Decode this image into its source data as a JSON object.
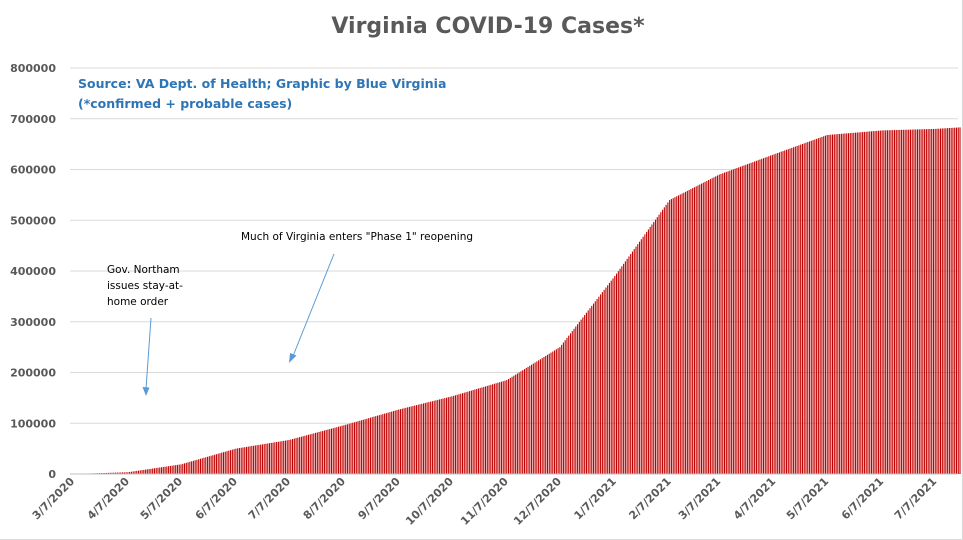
{
  "chart_data": {
    "type": "bar",
    "title": "Virginia COVID-19 Cases*",
    "source_lines": [
      "Source: VA Dept. of Health; Graphic by Blue Virginia",
      "(*confirmed + probable cases)"
    ],
    "xlabel": "",
    "ylabel": "",
    "ylim": [
      0,
      800000
    ],
    "y_ticks": [
      0,
      100000,
      200000,
      300000,
      400000,
      500000,
      600000,
      700000,
      800000
    ],
    "y_tick_labels": [
      "0",
      "100000",
      "200000",
      "300000",
      "400000",
      "500000",
      "600000",
      "700000",
      "800000"
    ],
    "x_tick_labels": [
      "3/7/2020",
      "4/7/2020",
      "5/7/2020",
      "6/7/2020",
      "7/7/2020",
      "8/7/2020",
      "9/7/2020",
      "10/7/2020",
      "11/7/2020",
      "12/7/2020",
      "1/7/2021",
      "2/7/2021",
      "3/7/2021",
      "4/7/2021",
      "5/7/2021",
      "6/7/2021",
      "7/7/2021"
    ],
    "grid": true,
    "legend": "none",
    "bar_color": "#c00000",
    "series": [
      {
        "x": [
          "3/7/2020",
          "4/7/2020",
          "5/7/2020",
          "6/7/2020",
          "7/7/2020",
          "8/7/2020",
          "9/7/2020",
          "10/7/2020",
          "11/7/2020",
          "12/7/2020",
          "1/7/2021",
          "2/7/2021",
          "3/7/2021",
          "4/7/2021",
          "5/7/2021",
          "6/7/2021",
          "7/7/2021",
          "7/21/2021"
        ],
        "values": [
          0,
          3500,
          19000,
          50000,
          67000,
          96000,
          127000,
          153000,
          185000,
          250000,
          390000,
          540000,
          590000,
          630000,
          668000,
          677000,
          680000,
          683000
        ]
      }
    ],
    "annotations": [
      {
        "lines": [
          "Gov. Northam",
          "issues stay-at-",
          "home order"
        ],
        "points_to": "3/30/2020"
      },
      {
        "lines": [
          "Much of Virginia enters \"Phase 1\" reopening"
        ],
        "points_to": "5/15/2020"
      }
    ]
  }
}
